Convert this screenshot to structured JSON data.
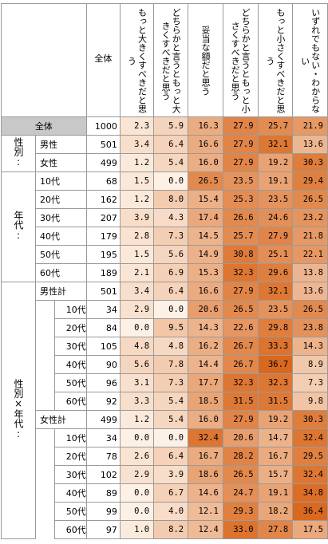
{
  "table": {
    "total_label": "全体",
    "headers": [
      "全体",
      "もっと大きくすべきだと思う",
      "どちらかと言うともっと大きくすべきだと思う",
      "妥当な額だと思う",
      "どちらかと言うともっと小さくすべきだと思う",
      "もっと小さくすべきだと思う",
      "いずれでもない・わからない"
    ],
    "groups": {
      "sex": "性別:",
      "age": "年代:",
      "sex_age": "性別×年代:"
    },
    "rows": [
      {
        "label": "全体",
        "n": "1000",
        "values": [
          "2.3",
          "5.9",
          "16.3",
          "27.9",
          "25.7",
          "21.9"
        ]
      },
      {
        "label": "男性",
        "n": "501",
        "values": [
          "3.4",
          "6.4",
          "16.6",
          "27.9",
          "32.1",
          "13.6"
        ]
      },
      {
        "label": "女性",
        "n": "499",
        "values": [
          "1.2",
          "5.4",
          "16.0",
          "27.9",
          "19.2",
          "30.3"
        ]
      },
      {
        "label": "10代",
        "n": "68",
        "values": [
          "1.5",
          "0.0",
          "26.5",
          "23.5",
          "19.1",
          "29.4"
        ]
      },
      {
        "label": "20代",
        "n": "162",
        "values": [
          "1.2",
          "8.0",
          "15.4",
          "25.3",
          "23.5",
          "26.5"
        ]
      },
      {
        "label": "30代",
        "n": "207",
        "values": [
          "3.9",
          "4.3",
          "17.4",
          "26.6",
          "24.6",
          "23.2"
        ]
      },
      {
        "label": "40代",
        "n": "179",
        "values": [
          "2.8",
          "7.3",
          "14.5",
          "25.7",
          "27.9",
          "21.8"
        ]
      },
      {
        "label": "50代",
        "n": "195",
        "values": [
          "1.5",
          "5.6",
          "14.9",
          "30.8",
          "25.1",
          "22.1"
        ]
      },
      {
        "label": "60代",
        "n": "189",
        "values": [
          "2.1",
          "6.9",
          "15.3",
          "32.3",
          "29.6",
          "13.8"
        ]
      },
      {
        "label": "男性計",
        "n": "501",
        "values": [
          "3.4",
          "6.4",
          "16.6",
          "27.9",
          "32.1",
          "13.6"
        ]
      },
      {
        "label": "10代",
        "n": "34",
        "values": [
          "2.9",
          "0.0",
          "20.6",
          "26.5",
          "23.5",
          "26.5"
        ]
      },
      {
        "label": "20代",
        "n": "84",
        "values": [
          "0.0",
          "9.5",
          "14.3",
          "22.6",
          "29.8",
          "23.8"
        ]
      },
      {
        "label": "30代",
        "n": "105",
        "values": [
          "4.8",
          "4.8",
          "16.2",
          "26.7",
          "33.3",
          "14.3"
        ]
      },
      {
        "label": "40代",
        "n": "90",
        "values": [
          "5.6",
          "7.8",
          "14.4",
          "26.7",
          "36.7",
          "8.9"
        ]
      },
      {
        "label": "50代",
        "n": "96",
        "values": [
          "3.1",
          "7.3",
          "17.7",
          "32.3",
          "32.3",
          "7.3"
        ]
      },
      {
        "label": "60代",
        "n": "92",
        "values": [
          "3.3",
          "5.4",
          "18.5",
          "31.5",
          "31.5",
          "9.8"
        ]
      },
      {
        "label": "女性計",
        "n": "499",
        "values": [
          "1.2",
          "5.4",
          "16.0",
          "27.9",
          "19.2",
          "30.3"
        ]
      },
      {
        "label": "10代",
        "n": "34",
        "values": [
          "0.0",
          "0.0",
          "32.4",
          "20.6",
          "14.7",
          "32.4"
        ]
      },
      {
        "label": "20代",
        "n": "78",
        "values": [
          "2.6",
          "6.4",
          "16.7",
          "28.2",
          "16.7",
          "29.5"
        ]
      },
      {
        "label": "30代",
        "n": "102",
        "values": [
          "2.9",
          "3.9",
          "18.6",
          "26.5",
          "15.7",
          "32.4"
        ]
      },
      {
        "label": "40代",
        "n": "89",
        "values": [
          "0.0",
          "6.7",
          "14.6",
          "24.7",
          "19.1",
          "34.8"
        ]
      },
      {
        "label": "50代",
        "n": "99",
        "values": [
          "0.0",
          "4.0",
          "12.1",
          "29.3",
          "18.2",
          "36.4"
        ]
      },
      {
        "label": "60代",
        "n": "97",
        "values": [
          "1.0",
          "8.2",
          "12.4",
          "33.0",
          "27.8",
          "17.5"
        ]
      }
    ]
  },
  "colors": {
    "scale_low": "#fdf1e6",
    "scale_high": "#d9681e",
    "grid": "#9a9a9a",
    "total_label_bg": "#c8c8c8"
  }
}
